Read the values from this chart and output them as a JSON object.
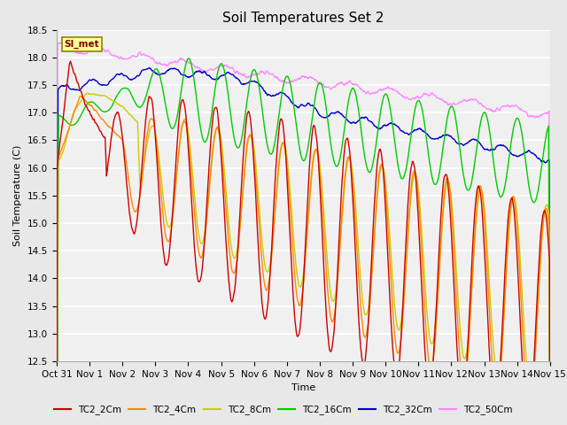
{
  "title": "Soil Temperatures Set 2",
  "xlabel": "Time",
  "ylabel": "Soil Temperature (C)",
  "ylim": [
    12.5,
    18.5
  ],
  "xlim_days": [
    0,
    15
  ],
  "x_tick_labels": [
    "Oct 31",
    "Nov 1",
    "Nov 2",
    "Nov 3",
    "Nov 4",
    "Nov 5",
    "Nov 6",
    "Nov 7",
    "Nov 8",
    "Nov 9",
    "Nov 10",
    "Nov 11",
    "Nov 12",
    "Nov 13",
    "Nov 14",
    "Nov 15"
  ],
  "series_colors": {
    "TC2_2Cm": "#cc0000",
    "TC2_4Cm": "#ff8800",
    "TC2_8Cm": "#cccc00",
    "TC2_16Cm": "#00cc00",
    "TC2_32Cm": "#0000cc",
    "TC2_50Cm": "#ff88ff"
  },
  "legend_label": "SI_met",
  "legend_box_color": "#ffff99",
  "legend_box_border": "#888800",
  "background_color": "#e8e8e8",
  "plot_bg_color": "#f0f0f0",
  "grid_color": "#ffffff",
  "title_fontsize": 11,
  "axis_fontsize": 8,
  "tick_fontsize": 7.5
}
